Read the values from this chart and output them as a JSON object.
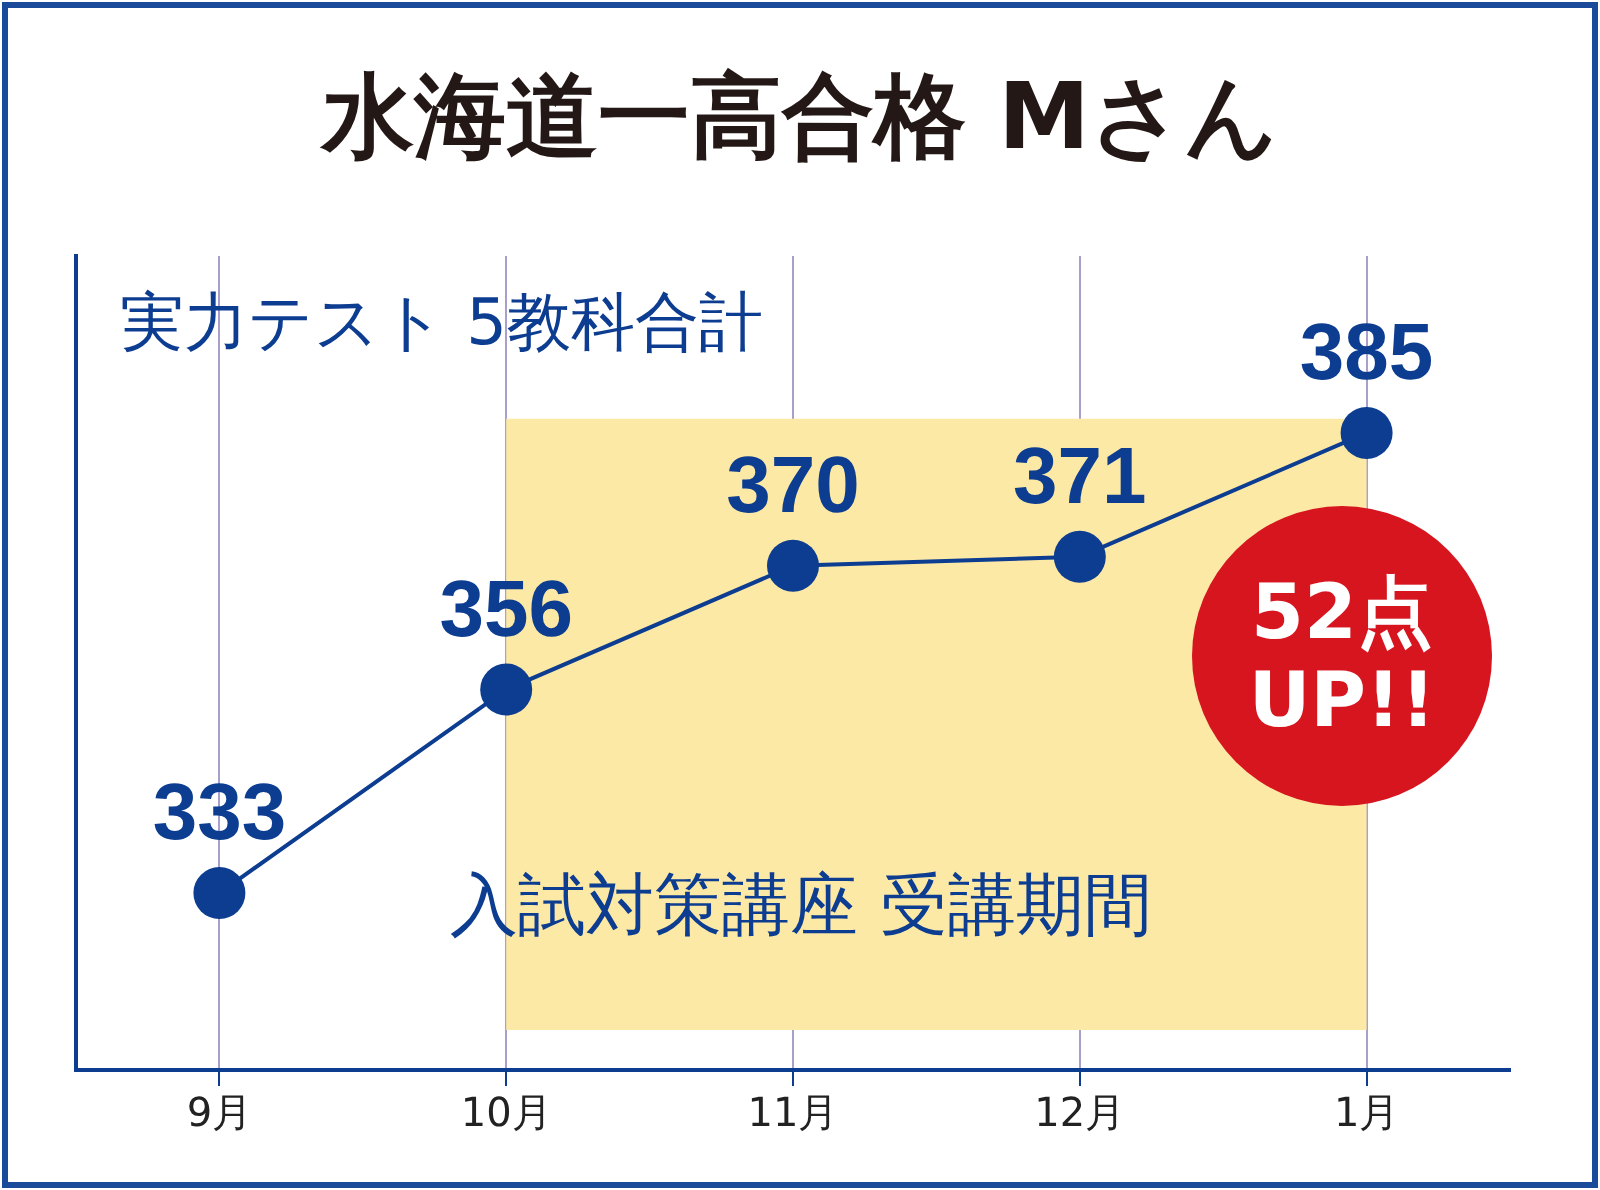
{
  "chart_data": {
    "type": "line",
    "title": "水海道一高合格 Mさん",
    "subtitle": "実力テスト 5教科合計",
    "categories": [
      "9月",
      "10月",
      "11月",
      "12月",
      "1月"
    ],
    "series": [
      {
        "color": "#0c3d91",
        "values": [
          333,
          356,
          370,
          371,
          385
        ]
      }
    ],
    "ylim": [
      313,
      405
    ],
    "tick_labels": "x",
    "grid": "x",
    "legend": false,
    "marker": "circle",
    "line_style": "solid",
    "data_labels": true,
    "bands": [
      {
        "axis": "x",
        "from": "10月",
        "to": "1月",
        "label": "入試対策講座 受講期間",
        "color": "#fde9a6"
      }
    ],
    "annotations": [
      "52点 UP!!"
    ]
  }
}
